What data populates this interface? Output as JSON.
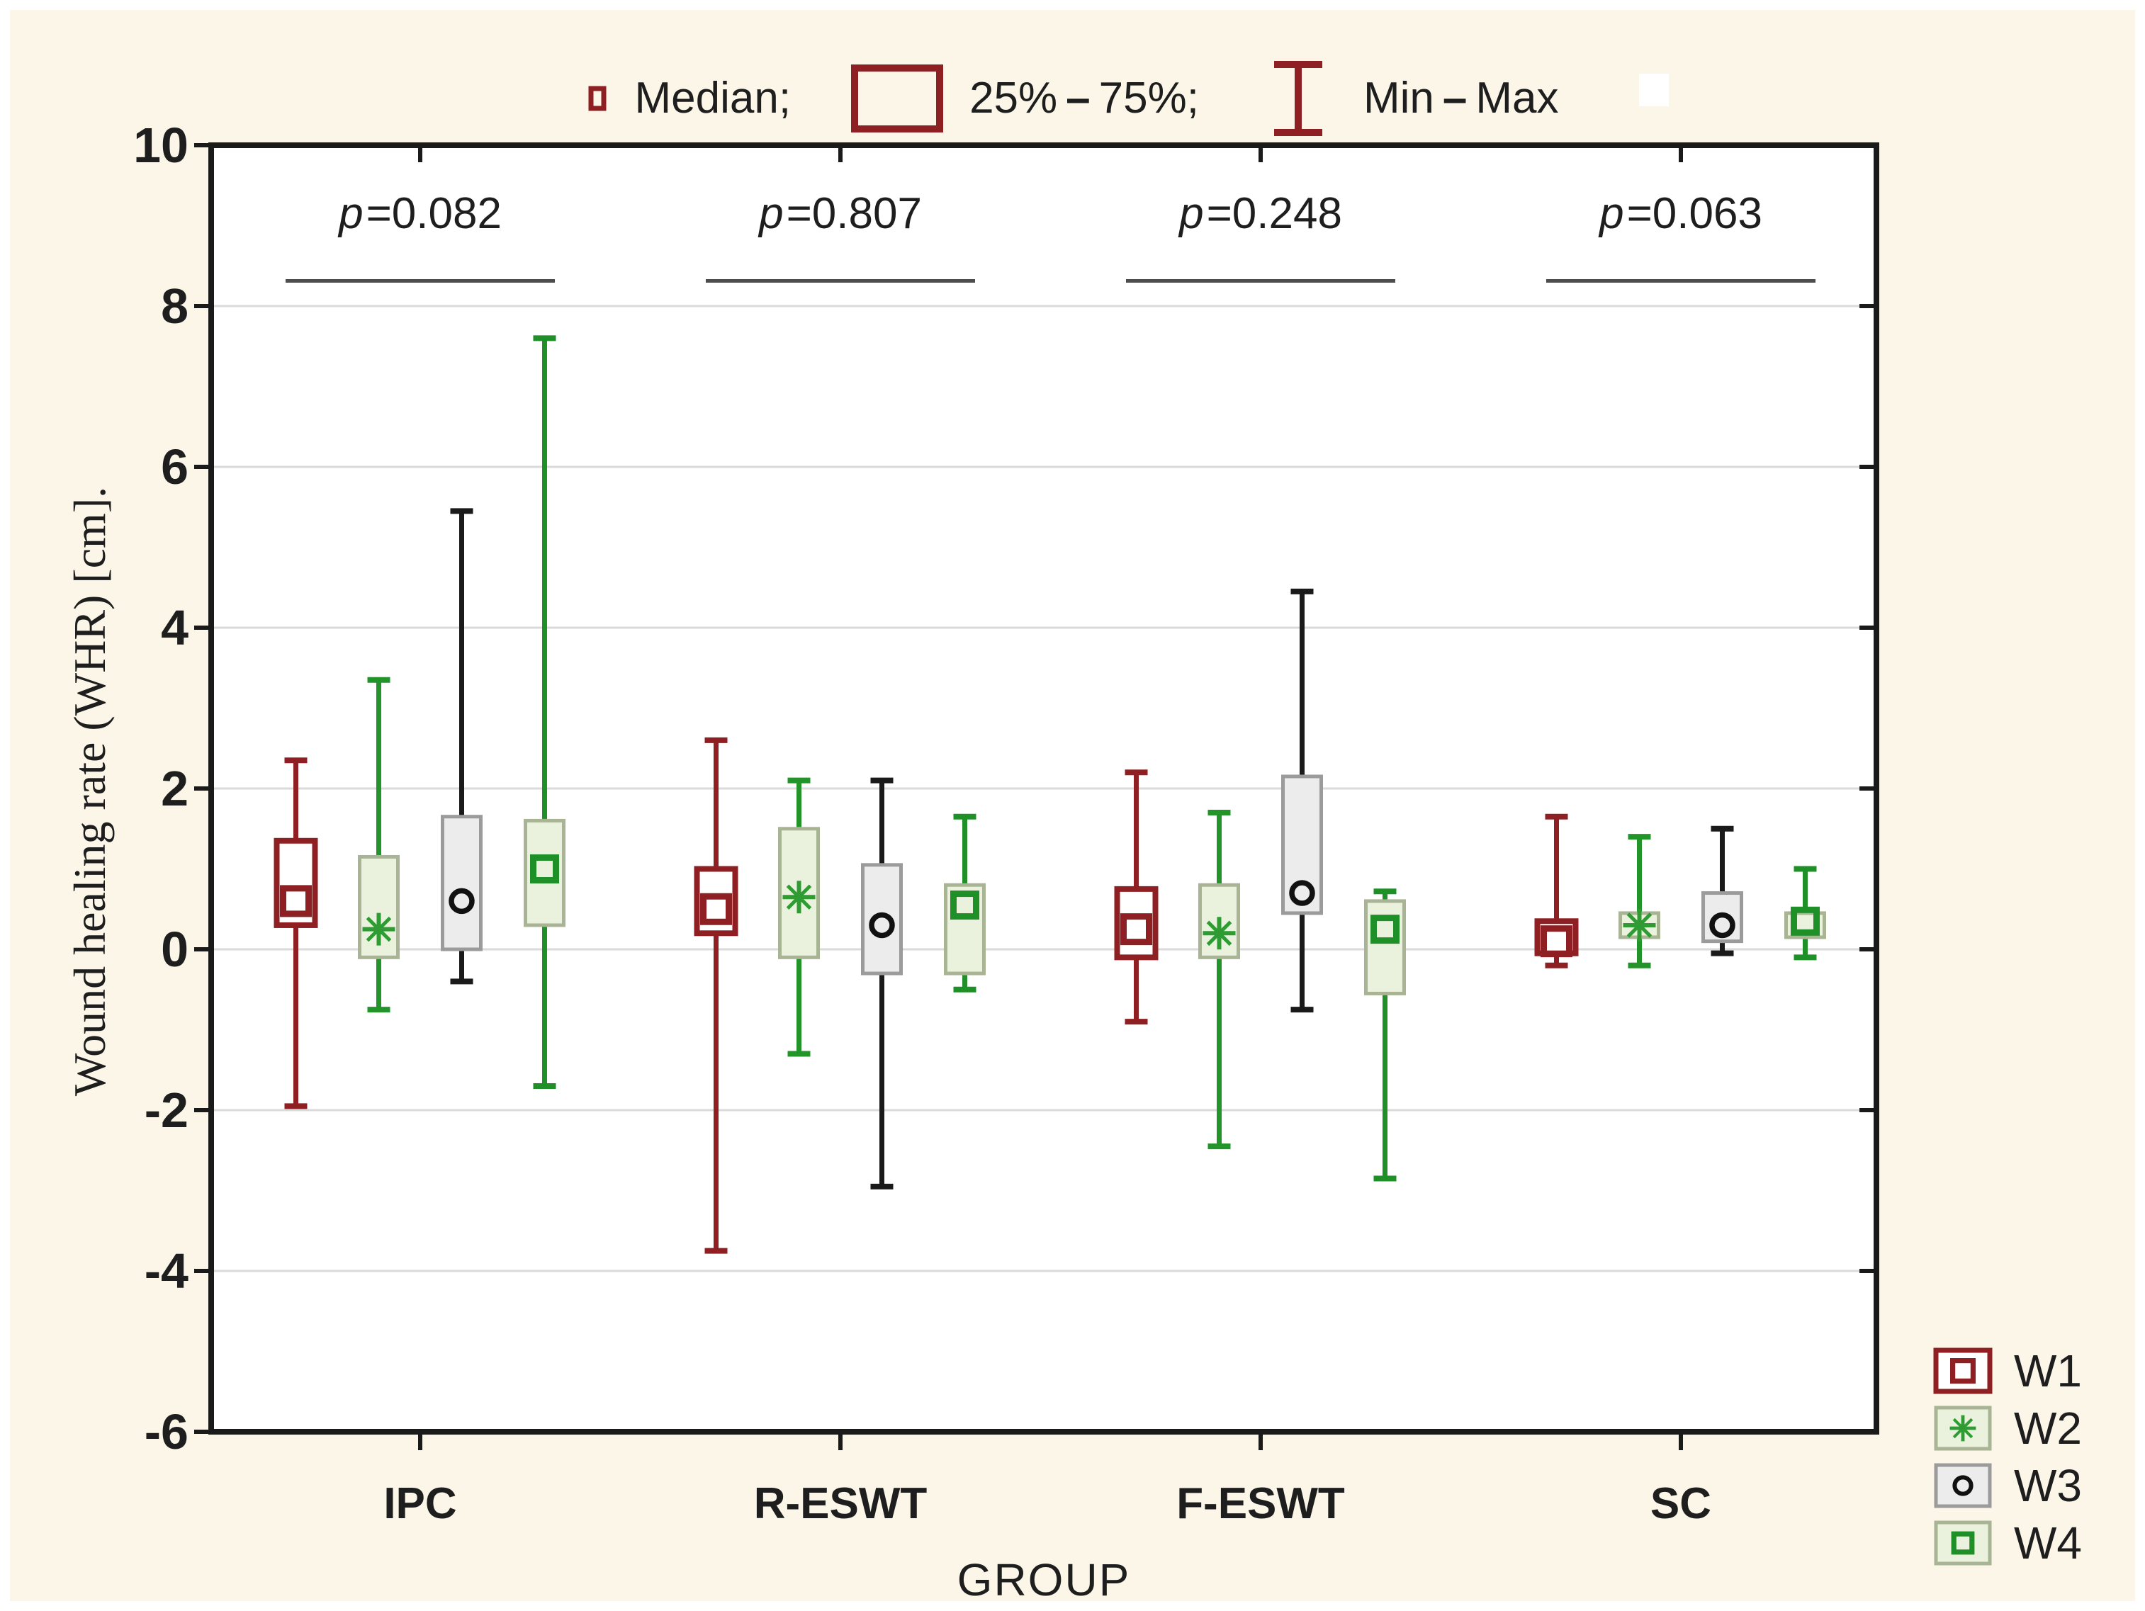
{
  "colors": {
    "background": "#fbf6e7",
    "plot_background": "#ffffff",
    "frame": "#1a1a1a",
    "gridline": "#dadada",
    "annotation_line": "#4d4d4d",
    "text": "#1e1e1e",
    "w1_red": "#8e2023",
    "w2_whisker_green": "#22942a",
    "w2_marker_green": "#2f9c33",
    "w4_green": "#1f8f27",
    "green_box_border": "#a9b495",
    "green_box_fill": "#eaf1dd",
    "gray_box_border": "#9b9b9b",
    "gray_box_fill": "#ececec",
    "w3_whisker_black": "#1a1a1a"
  },
  "legend_top": {
    "median_label": "Median;",
    "iqr_left": "25%",
    "iqr_right": "75%;",
    "minmax_left": "Min",
    "minmax_right": "Max",
    "dash": "–"
  },
  "axes": {
    "y_title": "Wound healing rate (WHR) [cm].",
    "x_title": "GROUP",
    "y_ticks": [
      "10",
      "8",
      "6",
      "4",
      "2",
      "0",
      "-2",
      "-4",
      "-6"
    ],
    "y_range": [
      10,
      -6
    ],
    "categories": [
      "IPC",
      "R-ESWT",
      "F-ESWT",
      "SC"
    ]
  },
  "annotations": [
    {
      "group": "IPC",
      "label": "p=0.082"
    },
    {
      "group": "R-ESWT",
      "label": "p=0.807"
    },
    {
      "group": "F-ESWT",
      "label": "p=0.248"
    },
    {
      "group": "SC",
      "label": "p=0.063"
    }
  ],
  "series_legend": [
    {
      "label": "W1"
    },
    {
      "label": "W2"
    },
    {
      "label": "W3"
    },
    {
      "label": "W4"
    }
  ],
  "chart_data": {
    "type": "boxplot",
    "title": "",
    "xlabel": "GROUP",
    "ylabel": "Wound healing rate (WHR) [cm].",
    "ylim": [
      -6,
      10
    ],
    "grid": "horizontal gridlines every 2 units",
    "legend_position": "bottom-right",
    "center_definition": "Median",
    "box_definition": "25% - 75%",
    "whisker_definition": "Min - Max",
    "categories": [
      "IPC",
      "R-ESWT",
      "F-ESWT",
      "SC"
    ],
    "p_values": [
      0.082,
      0.807,
      0.248,
      0.063
    ],
    "series": [
      {
        "name": "W1",
        "marker": "open-square",
        "style": {
          "whisker": "#8e2023",
          "box_border": "#8e2023",
          "box_fill": "#ffffff",
          "marker": "#8e2023",
          "marker_size": 36,
          "box_stroke_width": 8
        },
        "values": [
          {
            "min": -1.95,
            "q1": 0.3,
            "median": 0.6,
            "q3": 1.35,
            "max": 2.35
          },
          {
            "min": -3.75,
            "q1": 0.2,
            "median": 0.5,
            "q3": 1.0,
            "max": 2.6
          },
          {
            "min": -0.9,
            "q1": -0.1,
            "median": 0.25,
            "q3": 0.75,
            "max": 2.2
          },
          {
            "min": -0.2,
            "q1": -0.05,
            "median": 0.1,
            "q3": 0.35,
            "max": 1.65
          }
        ]
      },
      {
        "name": "W2",
        "marker": "asterisk",
        "style": {
          "whisker": "#22942a",
          "box_border": "#a9b495",
          "box_fill": "#eaf1dd",
          "marker": "#2f9c33",
          "marker_size": 46,
          "box_stroke_width": 5
        },
        "values": [
          {
            "min": -0.75,
            "q1": -0.1,
            "median": 0.25,
            "q3": 1.15,
            "max": 3.35
          },
          {
            "min": -1.3,
            "q1": -0.1,
            "median": 0.65,
            "q3": 1.5,
            "max": 2.1
          },
          {
            "min": -2.45,
            "q1": -0.1,
            "median": 0.2,
            "q3": 0.8,
            "max": 1.7
          },
          {
            "min": -0.2,
            "q1": 0.15,
            "median": 0.3,
            "q3": 0.45,
            "max": 1.4
          }
        ]
      },
      {
        "name": "W3",
        "marker": "open-circle",
        "style": {
          "whisker": "#1a1a1a",
          "box_border": "#9b9b9b",
          "box_fill": "#ececec",
          "marker": "#111111",
          "marker_size": 30,
          "box_stroke_width": 5
        },
        "values": [
          {
            "min": -0.4,
            "q1": 0.0,
            "median": 0.6,
            "q3": 1.65,
            "max": 5.45
          },
          {
            "min": -2.95,
            "q1": -0.3,
            "median": 0.3,
            "q3": 1.05,
            "max": 2.1
          },
          {
            "min": -0.75,
            "q1": 0.45,
            "median": 0.7,
            "q3": 2.15,
            "max": 4.45
          },
          {
            "min": -0.05,
            "q1": 0.1,
            "median": 0.3,
            "q3": 0.7,
            "max": 1.5
          }
        ]
      },
      {
        "name": "W4",
        "marker": "open-square",
        "style": {
          "whisker": "#1f8f27",
          "box_border": "#a9b495",
          "box_fill": "#eaf1dd",
          "marker": "#1f8f27",
          "marker_size": 32,
          "box_stroke_width": 5
        },
        "values": [
          {
            "min": -1.7,
            "q1": 0.3,
            "median": 1.0,
            "q3": 1.6,
            "max": 7.6
          },
          {
            "min": -0.5,
            "q1": -0.3,
            "median": 0.55,
            "q3": 0.8,
            "max": 1.65
          },
          {
            "min": -2.85,
            "q1": -0.55,
            "median": 0.25,
            "q3": 0.6,
            "max": 0.72
          },
          {
            "min": -0.1,
            "q1": 0.15,
            "median": 0.35,
            "q3": 0.45,
            "max": 1.0
          }
        ]
      }
    ]
  }
}
